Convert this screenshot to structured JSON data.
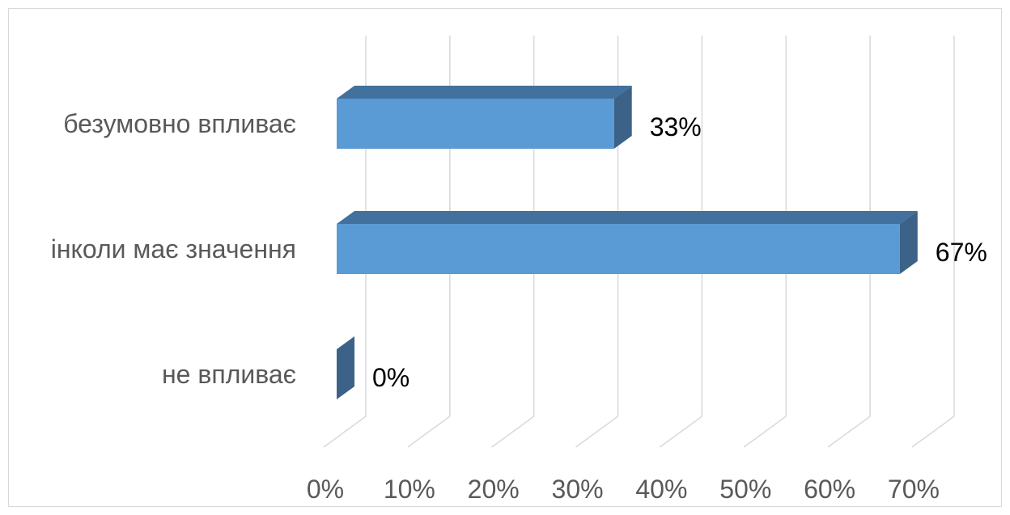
{
  "chart_data": {
    "type": "bar",
    "orientation": "horizontal",
    "style": "3d",
    "categories": [
      "безумовно впливає",
      "інколи має значення",
      "не впливає"
    ],
    "values": [
      33,
      67,
      0
    ],
    "data_labels": [
      "33%",
      "67%",
      "0%"
    ],
    "xlim": [
      0,
      70
    ],
    "x_ticks": [
      0,
      10,
      20,
      30,
      40,
      50,
      60,
      70
    ],
    "x_tick_labels": [
      "0%",
      "10%",
      "20%",
      "30%",
      "40%",
      "50%",
      "60%",
      "70%"
    ],
    "title": "",
    "xlabel": "",
    "ylabel": "",
    "grid": true,
    "legend": false,
    "colors": {
      "bar_front": "#5b9bd5",
      "bar_top": "#41719c",
      "bar_side": "#3c6287",
      "grid": "#d9d9d9",
      "tick_text": "#595959",
      "label_text": "#000000"
    }
  }
}
